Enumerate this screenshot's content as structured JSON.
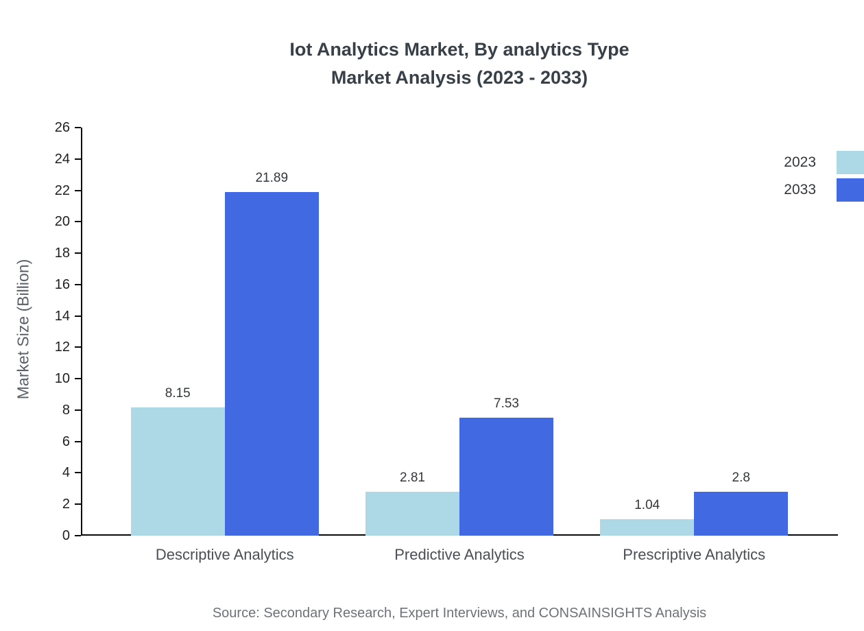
{
  "title_line1": "Iot Analytics Market, By analytics Type",
  "title_line2": "Market Analysis (2023 - 2033)",
  "source_text": "Source: Secondary Research, Expert Interviews, and CONSAINSIGHTS Analysis",
  "chart_data": {
    "type": "bar",
    "title": "Iot Analytics Market, By analytics Type — Market Analysis (2023 - 2033)",
    "categories": [
      "Descriptive Analytics",
      "Predictive Analytics",
      "Prescriptive Analytics"
    ],
    "series": [
      {
        "name": "2023",
        "color": "#add8e6",
        "values": [
          8.15,
          2.81,
          1.04
        ]
      },
      {
        "name": "2033",
        "color": "#4169e1",
        "values": [
          21.89,
          7.53,
          2.8
        ]
      }
    ],
    "xlabel": "",
    "ylabel": "Market Size (Billion)",
    "ylim": [
      0,
      26
    ],
    "ytick_step": 2,
    "grid": false,
    "legend_position": "top-right",
    "value_labels_shown": true
  }
}
